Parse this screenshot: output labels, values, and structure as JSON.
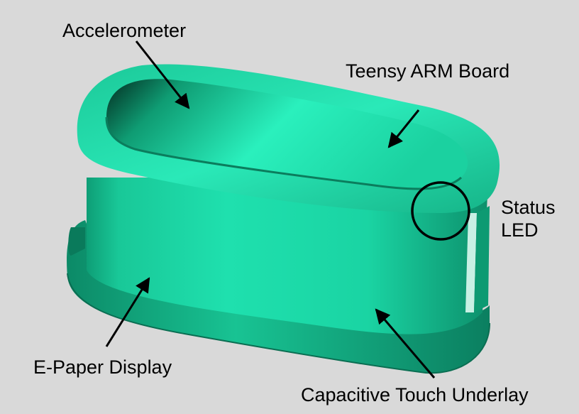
{
  "diagram": {
    "colors": {
      "background": "#d9d9d9",
      "body": "#1dd6a6",
      "body_dark": "#0a7d5e",
      "body_light": "#33f0c0",
      "outline": "#000000"
    },
    "labels": {
      "accelerometer": "Accelerometer",
      "teensy_board": "Teensy ARM Board",
      "status_led_line1": "Status",
      "status_led_line2": "LED",
      "epaper_display": "E-Paper Display",
      "capacitive_touch": "Capacitive Touch Underlay"
    }
  }
}
